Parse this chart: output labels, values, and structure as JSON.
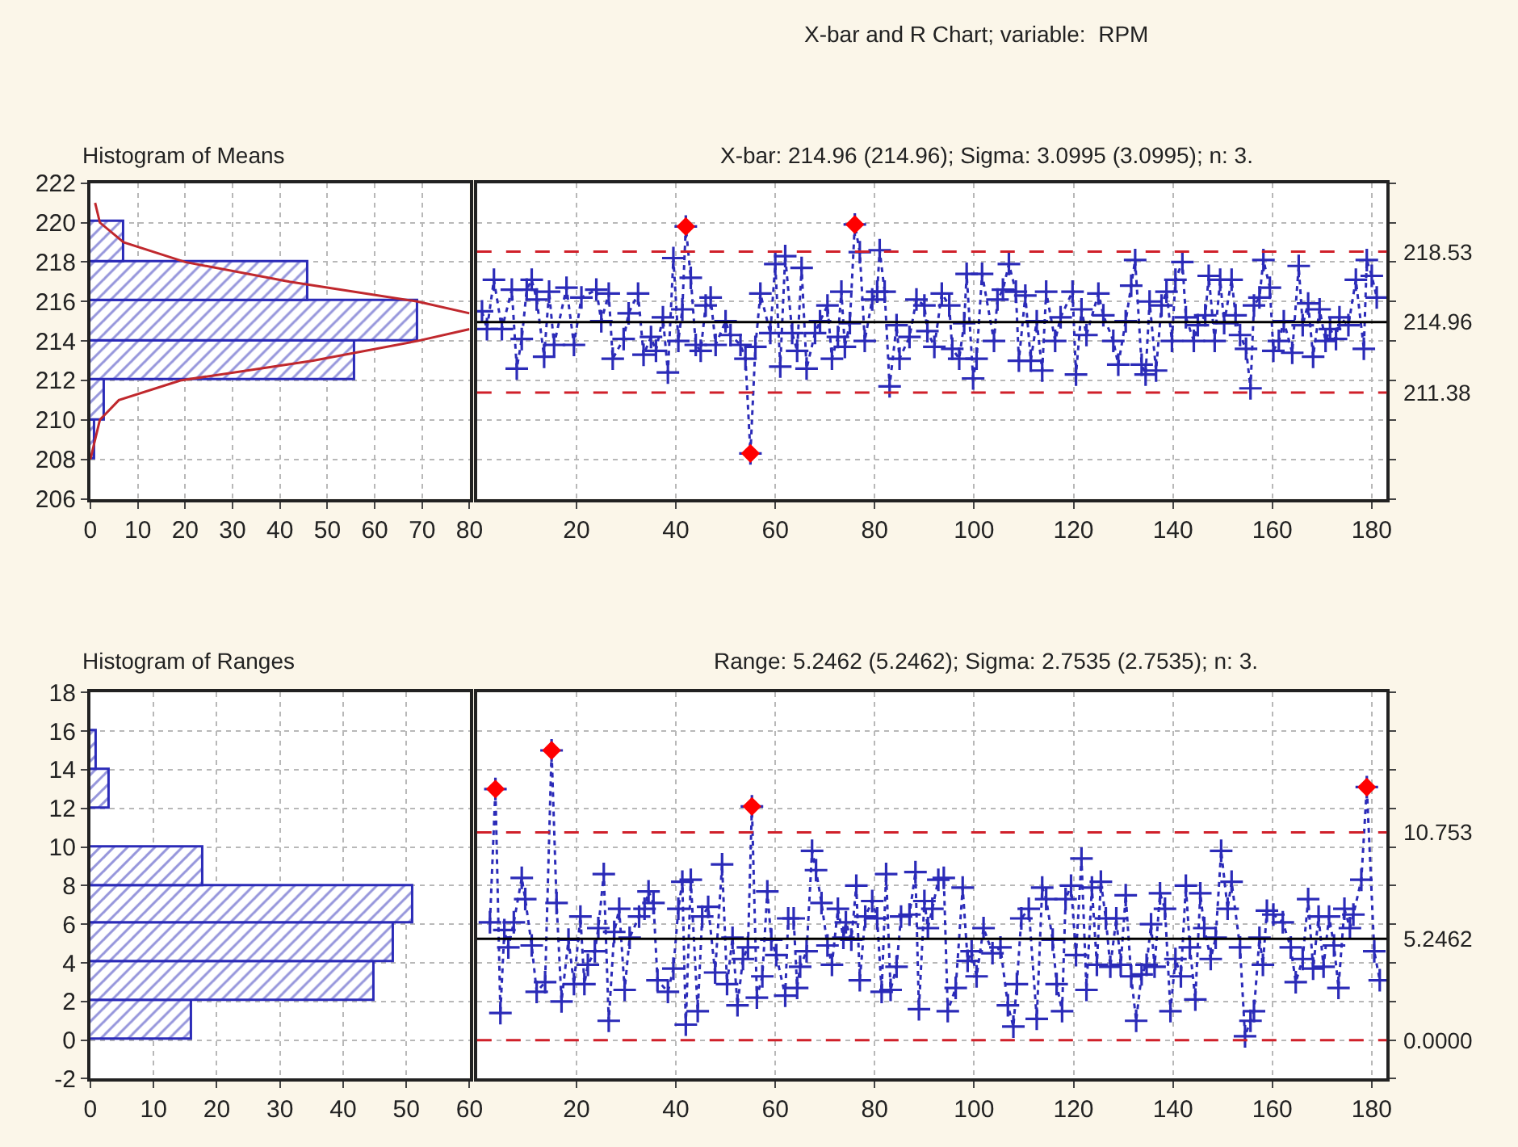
{
  "chart_data": [
    {
      "type": "histogram",
      "title": "Histogram of Means",
      "orientation": "horizontal",
      "bins": [
        208,
        210,
        212,
        214,
        216,
        218,
        220
      ],
      "values": [
        1,
        3,
        56,
        69,
        46,
        7
      ],
      "color": "#2b2bb8",
      "xlim": [
        0,
        80
      ],
      "xticks": [
        0,
        10,
        20,
        30,
        40,
        50,
        60,
        70,
        80
      ],
      "ylim": [
        206,
        222
      ],
      "yticks": [
        206,
        208,
        210,
        212,
        214,
        216,
        218,
        220,
        222
      ],
      "grid": true,
      "series": [
        {
          "type": "line",
          "color": "#c0282d",
          "x": [
            221,
            220,
            219,
            218,
            217,
            216,
            215.4,
            215,
            214.6,
            214,
            213,
            212,
            211,
            210,
            209,
            208
          ],
          "values": [
            1,
            2,
            7,
            20,
            42,
            69,
            80,
            null,
            80,
            69,
            47,
            19,
            6,
            2,
            1,
            0
          ]
        }
      ]
    },
    {
      "type": "line",
      "title": "X-bar and R Chart; variable:  RPM",
      "subtitle": "X-bar: 214.96 (214.96); Sigma: 3.0995 (3.0995); n: 3.",
      "xlim": [
        0,
        183
      ],
      "xticks": [
        20,
        40,
        60,
        80,
        100,
        120,
        140,
        160,
        180
      ],
      "ylim": [
        206,
        222
      ],
      "yticks": [
        {
          "value": 206,
          "label": null
        },
        {
          "value": 208,
          "label": null
        },
        {
          "value": 210,
          "label": null
        },
        {
          "value": 212,
          "label": null
        },
        {
          "value": 214,
          "label": null
        },
        {
          "value": 216,
          "label": null
        },
        {
          "value": 218,
          "label": null
        },
        {
          "value": 220,
          "label": null
        },
        {
          "value": 222,
          "label": null
        }
      ],
      "tick_labels": "x",
      "grid": true,
      "line_style": "dotted",
      "marker": "cross",
      "series": [
        {
          "color": "#2b2bb8",
          "x": [
            1,
            2,
            3.4,
            5,
            7,
            8,
            9,
            10,
            11,
            12,
            13.5,
            14.5,
            15.5,
            18,
            19.5,
            21,
            24,
            25,
            26.5,
            27.3,
            29.5,
            30.5,
            32.4,
            33.5,
            35,
            36,
            37.4,
            38.4,
            39.5,
            40.5,
            41.3,
            42,
            43,
            44,
            45,
            46,
            47,
            48,
            50,
            51,
            53,
            54,
            55,
            56,
            57,
            59,
            60,
            61,
            62,
            63.4,
            64.4,
            65.3,
            66.3,
            68,
            69,
            70.5,
            71.4,
            72.6,
            73.3,
            74,
            75,
            76,
            77,
            78,
            79.5,
            80.5,
            81,
            82,
            83,
            84.4,
            85,
            87,
            88.4,
            90,
            90.6,
            92,
            93.5,
            95,
            95.6,
            97,
            98,
            98.5,
            99.8,
            100.5,
            101.6,
            104,
            104.7,
            105.8,
            107,
            108.4,
            109,
            110.3,
            111.4,
            112.6,
            113.7,
            114.5,
            116.3,
            117.4,
            119.8,
            120.5,
            121.6,
            122.6,
            125,
            126,
            128,
            129,
            130.5,
            131.6,
            132.4,
            133.7,
            134.5,
            135.3,
            136.6,
            137.7,
            138.7,
            139.8,
            140.5,
            141.9,
            142.6,
            144.2,
            145,
            146.5,
            147.2,
            148.4,
            149.5,
            150.3,
            151.8,
            152.6,
            153.5,
            154.7,
            155.6,
            156.3,
            157.4,
            158.2,
            159.5,
            160.2,
            161.3,
            162.3,
            164,
            165.3,
            166.1,
            167.2,
            168.2,
            169.5,
            170.7,
            171.6,
            172.8,
            173.5,
            175.3,
            176.8,
            178.4,
            179,
            180,
            181
          ],
          "values": [
            215.5,
            214.6,
            217.1,
            214.6,
            216.6,
            212.6,
            214.1,
            216.6,
            217.1,
            216.1,
            213.2,
            216.5,
            213.8,
            216.7,
            213.8,
            216.2,
            216.6,
            215.0,
            216.4,
            213.1,
            214.1,
            215.4,
            216.4,
            213.3,
            214.2,
            213.5,
            215.2,
            212.4,
            218.2,
            214.0,
            215.6,
            219.8,
            217.2,
            213.8,
            213.5,
            215.8,
            216.2,
            213.8,
            215.0,
            214.3,
            213.8,
            213.1,
            208.3,
            213.7,
            216.4,
            214.4,
            217.9,
            212.7,
            218.3,
            214.4,
            213.5,
            217.7,
            212.6,
            214.4,
            215.0,
            215.8,
            213.1,
            214.2,
            216.5,
            213.7,
            214.9,
            219.9,
            218.5,
            214.0,
            216.1,
            216.5,
            218.6,
            216.5,
            211.7,
            214.8,
            213.1,
            214.2,
            216.1,
            215.8,
            214.5,
            213.7,
            216.4,
            215.8,
            213.6,
            213.1,
            214.9,
            217.4,
            212.1,
            213.1,
            217.4,
            214.0,
            216.1,
            216.6,
            217.9,
            216.5,
            213.0,
            216.3,
            213.0,
            215.0,
            212.5,
            216.5,
            214.0,
            215.2,
            216.5,
            212.3,
            215.6,
            214.3,
            216.4,
            215.3,
            214.0,
            212.8,
            215.0,
            216.8,
            218.1,
            212.8,
            212.3,
            216.0,
            212.5,
            215.8,
            216.5,
            214.0,
            217.1,
            218.0,
            215.2,
            214.0,
            214.8,
            215.3,
            217.3,
            214.0,
            217.1,
            214.9,
            217.1,
            215.3,
            214.3,
            213.6,
            211.6,
            215.8,
            216.2,
            218.1,
            216.7,
            213.5,
            214.0,
            215.0,
            213.4,
            217.8,
            214.8,
            215.9,
            213.2,
            215.6,
            214.0,
            214.6,
            214.1,
            215.2,
            214.8,
            217.1,
            213.6,
            218.1,
            217.3,
            216.2
          ]
        },
        {
          "type": "scatter",
          "marker": "diamond",
          "color": "#ff0000",
          "x": [
            42,
            55,
            76
          ],
          "values": [
            219.8,
            208.3,
            219.9
          ]
        }
      ],
      "ref_lines": [
        {
          "axis": "y",
          "value": 218.53,
          "label": "218.53",
          "color": "#d0202a",
          "line_style": "dashed"
        },
        {
          "axis": "y",
          "value": 214.96,
          "label": "214.96",
          "color": "#000000",
          "line_style": "solid"
        },
        {
          "axis": "y",
          "value": 211.38,
          "label": "211.38",
          "color": "#d0202a",
          "line_style": "dashed"
        }
      ]
    },
    {
      "type": "histogram",
      "title": "Histogram of Ranges",
      "orientation": "horizontal",
      "bins": [
        0,
        2,
        4,
        6,
        8,
        10,
        12,
        14,
        16
      ],
      "values": [
        16,
        45,
        48,
        51,
        18,
        0,
        3,
        1
      ],
      "color": "#2b2bb8",
      "xlim": [
        0,
        60
      ],
      "xticks": [
        0,
        10,
        20,
        30,
        40,
        50,
        60
      ],
      "ylim": [
        -2,
        18
      ],
      "yticks": [
        -2,
        0,
        2,
        4,
        6,
        8,
        10,
        12,
        14,
        16,
        18
      ],
      "grid": true
    },
    {
      "type": "line",
      "title": "Range: 5.2462 (5.2462); Sigma: 2.7535 (2.7535); n: 3.",
      "xlim": [
        0,
        183
      ],
      "xticks": [
        20,
        40,
        60,
        80,
        100,
        120,
        140,
        160,
        180
      ],
      "ylim": [
        -2,
        18
      ],
      "yticks": [
        {
          "value": -2,
          "label": null
        },
        {
          "value": 0,
          "label": null
        },
        {
          "value": 2,
          "label": null
        },
        {
          "value": 4,
          "label": null
        },
        {
          "value": 6,
          "label": null
        },
        {
          "value": 8,
          "label": null
        },
        {
          "value": 10,
          "label": null
        },
        {
          "value": 12,
          "label": null
        },
        {
          "value": 14,
          "label": null
        },
        {
          "value": 16,
          "label": null
        },
        {
          "value": 18,
          "label": null
        }
      ],
      "tick_labels": "x",
      "grid": true,
      "line_style": "dotted",
      "marker": "cross",
      "series": [
        {
          "color": "#2b2bb8",
          "x": [
            2.6,
            3.7,
            4.7,
            5.5,
            6.3,
            7.4,
            9,
            9.7,
            11,
            12,
            13.7,
            15,
            16,
            17,
            18.4,
            19.5,
            20.8,
            21.6,
            22.3,
            23.7,
            24.4,
            25.5,
            26.5,
            27.6,
            28.6,
            29.7,
            30.7,
            32.6,
            33.7,
            34.5,
            35.5,
            36.3,
            38.4,
            39.5,
            40.5,
            41.3,
            42,
            43,
            44.4,
            45.3,
            46.5,
            47.9,
            49.3,
            50.3,
            51.4,
            52.4,
            53.5,
            54.5,
            55.3,
            56.3,
            57.4,
            58.4,
            59.2,
            60.2,
            62,
            62.6,
            63.7,
            64.4,
            65,
            66.3,
            67.4,
            68.2,
            69.3,
            70.5,
            71.4,
            72.6,
            73.7,
            74.2,
            75.3,
            76.3,
            77,
            78.1,
            79.5,
            80.5,
            81.4,
            82.3,
            83.2,
            84.4,
            85.3,
            87,
            88.2,
            88.9,
            90,
            90.7,
            91.6,
            92.8,
            93.9,
            94.7,
            96.3,
            97.7,
            98.7,
            99.5,
            100.5,
            101.9,
            103.7,
            105.3,
            106.8,
            107.9,
            108.6,
            109.5,
            111,
            112.6,
            113.7,
            114.5,
            115.8,
            116.6,
            117.7,
            118.4,
            119.5,
            120.5,
            121.6,
            122.6,
            123.7,
            124.7,
            125.5,
            126.5,
            127.4,
            128.6,
            129.5,
            130.5,
            131.6,
            132.6,
            133.7,
            134.7,
            135.6,
            136.3,
            137.4,
            138.4,
            139.5,
            140.5,
            141.6,
            142.6,
            143.4,
            144.5,
            145.5,
            146.3,
            147.6,
            148.6,
            149.7,
            151,
            151.8,
            153.5,
            154.5,
            155.6,
            156.3,
            157.4,
            158.1,
            158.9,
            160.2,
            162.1,
            163.7,
            164.7,
            166.1,
            167.2,
            168.2,
            169.3,
            170.3,
            171.4,
            172.4,
            173.3,
            174.5,
            175.6,
            176.3,
            177.9,
            179,
            180.5,
            181.6
          ],
          "values": [
            6.1,
            13.0,
            1.4,
            5.7,
            4.8,
            6.1,
            8.4,
            7.3,
            4.9,
            2.5,
            3.0,
            15.0,
            7.1,
            2.0,
            5.2,
            2.9,
            6.4,
            2.9,
            3.9,
            4.6,
            5.8,
            8.6,
            1.0,
            5.6,
            6.8,
            2.6,
            5.3,
            6.4,
            6.8,
            7.7,
            7.1,
            3.1,
            2.5,
            3.7,
            6.8,
            8.2,
            0.8,
            8.3,
            1.5,
            6.4,
            6.9,
            3.5,
            9.1,
            2.9,
            5.3,
            1.8,
            4.2,
            4.8,
            12.1,
            2.2,
            3.3,
            7.7,
            5.2,
            4.4,
            2.3,
            6.3,
            6.3,
            2.7,
            3.8,
            4.6,
            9.8,
            8.8,
            7.1,
            4.9,
            3.9,
            6.8,
            5.3,
            6.1,
            5.2,
            8.0,
            3.1,
            6.4,
            7.2,
            6.3,
            2.5,
            8.6,
            2.6,
            3.8,
            6.4,
            6.5,
            8.7,
            1.6,
            7.2,
            5.8,
            6.8,
            8.3,
            8.4,
            1.5,
            2.7,
            7.9,
            4.1,
            4.6,
            3.3,
            5.8,
            4.5,
            4.8,
            1.8,
            0.7,
            2.9,
            6.3,
            6.8,
            1.1,
            7.9,
            7.3,
            5.2,
            2.9,
            1.5,
            7.3,
            8.0,
            4.4,
            9.4,
            2.6,
            7.9,
            3.9,
            8.2,
            6.3,
            3.8,
            6.3,
            3.9,
            7.5,
            3.3,
            1.0,
            3.4,
            3.9,
            6.0,
            3.8,
            7.6,
            6.8,
            1.5,
            4.2,
            3.3,
            8.0,
            4.8,
            2.1,
            7.6,
            5.8,
            4.2,
            5.3,
            9.8,
            6.8,
            8.2,
            4.8,
            0.2,
            1.0,
            1.5,
            5.3,
            3.9,
            6.7,
            6.5,
            6.1,
            4.8,
            3.0,
            4.2,
            7.3,
            3.7,
            6.4,
            3.8,
            6.4,
            4.9,
            2.7,
            6.8,
            5.8,
            6.5,
            8.3,
            13.1,
            4.6,
            3.1
          ]
        },
        {
          "type": "scatter",
          "marker": "diamond",
          "color": "#ff0000",
          "x": [
            3.7,
            15,
            55.3,
            179
          ],
          "values": [
            13.0,
            15.0,
            12.1,
            13.1
          ]
        }
      ],
      "ref_lines": [
        {
          "axis": "y",
          "value": 10.753,
          "label": "10.753",
          "color": "#d0202a",
          "line_style": "dashed"
        },
        {
          "axis": "y",
          "value": 5.2462,
          "label": "5.2462",
          "color": "#000000",
          "line_style": "solid"
        },
        {
          "axis": "y",
          "value": 0.0,
          "label": "0.0000",
          "color": "#d0202a",
          "line_style": "dashed"
        }
      ]
    }
  ]
}
